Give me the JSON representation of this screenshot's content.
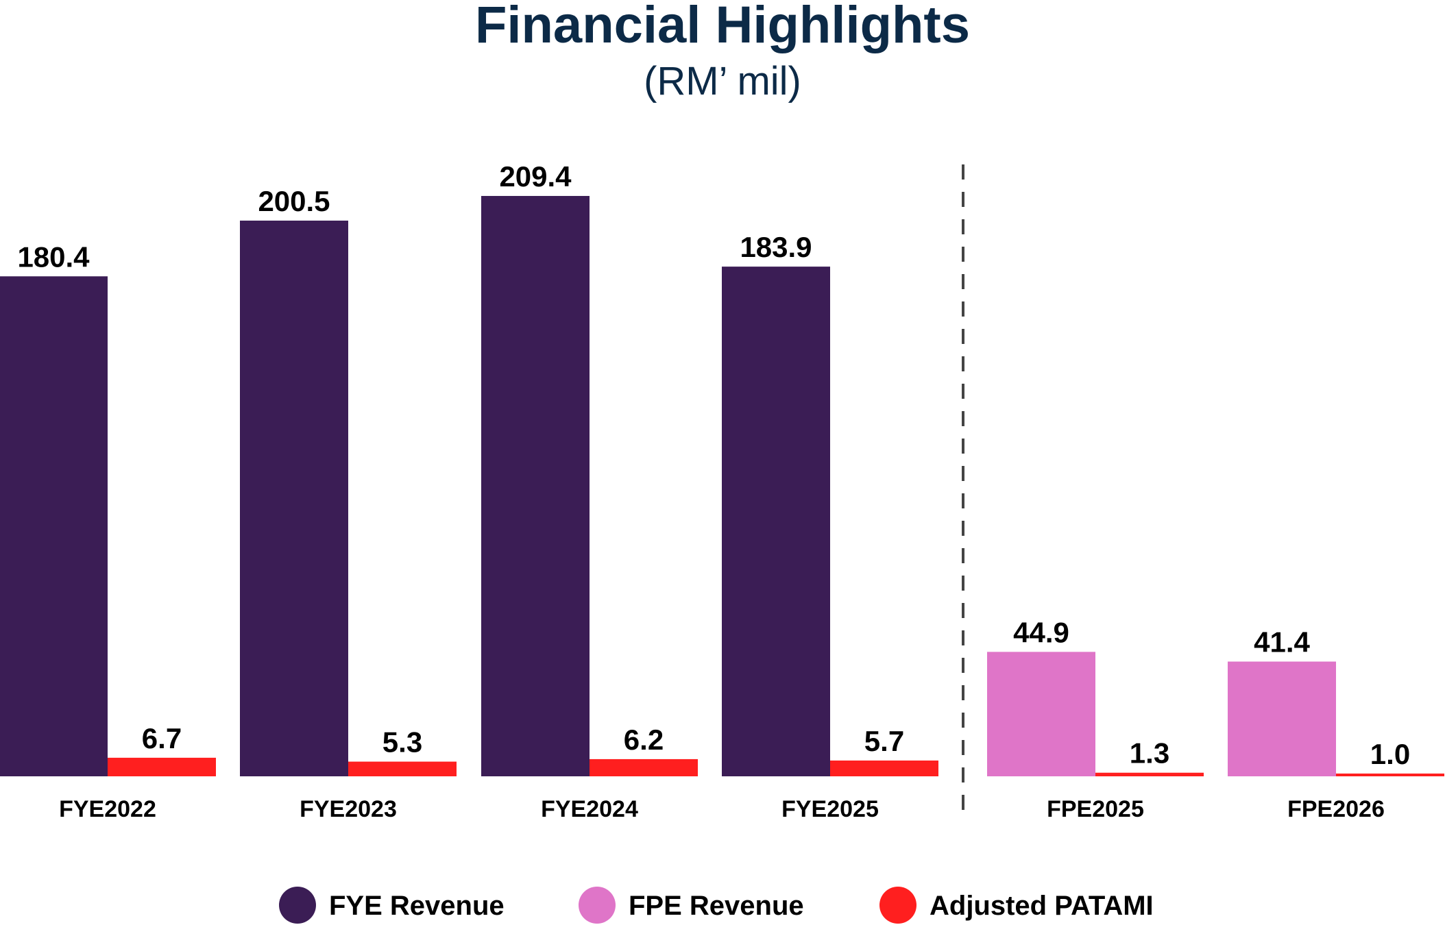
{
  "chart_data": {
    "type": "bar",
    "title": "Financial Highlights",
    "subtitle": "(RM’ mil)",
    "categories": [
      "FYE2022",
      "FYE2023",
      "FYE2024",
      "FYE2025",
      "FPE2025",
      "FPE2026"
    ],
    "series": [
      {
        "name": "FYE Revenue",
        "color": "#3b1d55",
        "values": [
          180.4,
          200.5,
          209.4,
          183.9,
          null,
          null
        ]
      },
      {
        "name": "FPE Revenue",
        "color": "#df75c8",
        "values": [
          null,
          null,
          null,
          null,
          44.9,
          41.4
        ]
      },
      {
        "name": "Adjusted PATAMI",
        "color": "#ff1f1f",
        "values": [
          6.7,
          5.3,
          6.2,
          5.7,
          1.3,
          1.0
        ],
        "value_labels": [
          "6.7",
          "5.3",
          "6.2",
          "5.7",
          "1.3",
          "1.0"
        ]
      }
    ]
  }
}
